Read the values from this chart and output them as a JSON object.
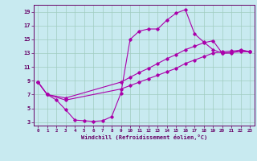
{
  "xlabel": "Windchill (Refroidissement éolien,°C)",
  "xlim": [
    -0.5,
    23.5
  ],
  "ylim": [
    2.5,
    20.0
  ],
  "xticks": [
    0,
    1,
    2,
    3,
    4,
    5,
    6,
    7,
    8,
    9,
    10,
    11,
    12,
    13,
    14,
    15,
    16,
    17,
    18,
    19,
    20,
    21,
    22,
    23
  ],
  "yticks": [
    3,
    5,
    7,
    9,
    11,
    13,
    15,
    17,
    19
  ],
  "background_color": "#c8eaf0",
  "grid_color": "#a0ccc0",
  "line_color": "#aa00aa",
  "line1_x": [
    0,
    1,
    2,
    3,
    4,
    5,
    6,
    7,
    8,
    9,
    10,
    11,
    12,
    13,
    14,
    15,
    16,
    17,
    18,
    19,
    20,
    21,
    22,
    23
  ],
  "line1_y": [
    8.8,
    7.0,
    6.2,
    4.8,
    3.3,
    3.2,
    3.1,
    3.2,
    3.8,
    7.2,
    15.0,
    16.2,
    16.5,
    16.5,
    17.8,
    18.8,
    19.3,
    15.8,
    14.6,
    13.5,
    13.0,
    13.0,
    13.5,
    13.2
  ],
  "line2_x": [
    0,
    1,
    3,
    9,
    10,
    11,
    12,
    13,
    14,
    15,
    16,
    17,
    18,
    19,
    20,
    21,
    22,
    23
  ],
  "line2_y": [
    8.8,
    7.0,
    6.2,
    7.8,
    8.3,
    8.8,
    9.3,
    9.8,
    10.3,
    10.8,
    11.5,
    12.0,
    12.5,
    13.0,
    13.2,
    13.3,
    13.4,
    13.2
  ],
  "line3_x": [
    0,
    1,
    3,
    9,
    10,
    11,
    12,
    13,
    14,
    15,
    16,
    17,
    18,
    19,
    20,
    21,
    22,
    23
  ],
  "line3_y": [
    8.8,
    7.0,
    6.5,
    8.8,
    9.5,
    10.2,
    10.8,
    11.5,
    12.2,
    12.8,
    13.5,
    14.0,
    14.5,
    14.8,
    13.0,
    13.1,
    13.2,
    13.2
  ]
}
